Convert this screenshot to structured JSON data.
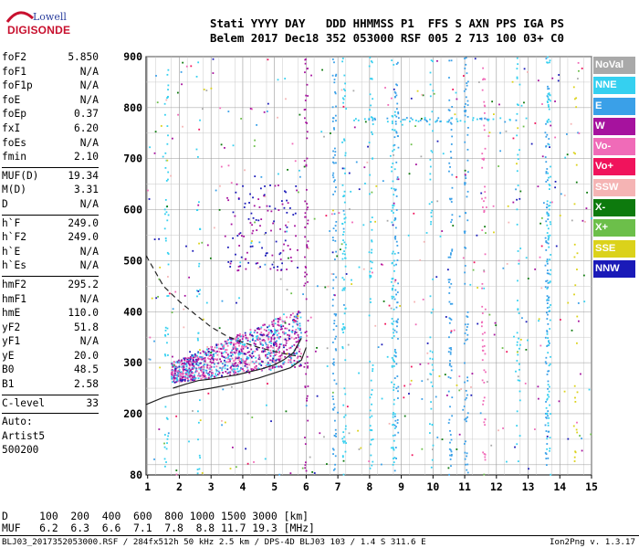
{
  "logo": {
    "line1": "Lowell",
    "line2": "DIGISONDE"
  },
  "header": {
    "line1": "Stati YYYY DAY   DDD HHMMSS P1  FFS S AXN PPS IGA PS",
    "line2": "Belem 2017 Dec18 352 053000 RSF 005 2 713 100 03+ C0"
  },
  "params": [
    {
      "name": "foF2",
      "value": "5.850"
    },
    {
      "name": "foF1",
      "value": "N/A"
    },
    {
      "name": "foF1p",
      "value": "N/A"
    },
    {
      "name": "foE",
      "value": "N/A"
    },
    {
      "name": "foEp",
      "value": "0.37"
    },
    {
      "name": "fxI",
      "value": "6.20"
    },
    {
      "name": "foEs",
      "value": "N/A"
    },
    {
      "name": "fmin",
      "value": "2.10"
    },
    {
      "sep": true
    },
    {
      "name": "MUF(D)",
      "value": "19.34"
    },
    {
      "name": "M(D)",
      "value": "3.31"
    },
    {
      "name": "D",
      "value": "N/A"
    },
    {
      "sep": true
    },
    {
      "name": "h`F",
      "value": "249.0"
    },
    {
      "name": "h`F2",
      "value": "249.0"
    },
    {
      "name": "h`E",
      "value": "N/A"
    },
    {
      "name": "h`Es",
      "value": "N/A"
    },
    {
      "sep": true
    },
    {
      "name": "hmF2",
      "value": "295.2"
    },
    {
      "name": "hmF1",
      "value": "N/A"
    },
    {
      "name": "hmE",
      "value": "110.0"
    },
    {
      "name": "yF2",
      "value": "51.8"
    },
    {
      "name": "yF1",
      "value": "N/A"
    },
    {
      "name": "yE",
      "value": "20.0"
    },
    {
      "name": "B0",
      "value": "48.5"
    },
    {
      "name": "B1",
      "value": "2.58"
    },
    {
      "sep": true
    },
    {
      "name": "C-level",
      "value": "33"
    },
    {
      "sep": true
    },
    {
      "text": "Auto:"
    },
    {
      "text": "Artist5"
    },
    {
      "text": "500200"
    }
  ],
  "legend": [
    {
      "label": "NoVal",
      "color": "#a9a9a9"
    },
    {
      "label": "NNE",
      "color": "#35d0f0"
    },
    {
      "label": "E",
      "color": "#3aa0e8"
    },
    {
      "label": "W",
      "color": "#a6129e"
    },
    {
      "label": "Vo-",
      "color": "#f06bb8"
    },
    {
      "label": "Vo+",
      "color": "#f0135c"
    },
    {
      "label": "SSW",
      "color": "#f5b4b4"
    },
    {
      "label": "X-",
      "color": "#0d7a0d"
    },
    {
      "label": "X+",
      "color": "#6cbf4a"
    },
    {
      "label": "SSE",
      "color": "#dbd21a"
    },
    {
      "label": "NNW",
      "color": "#1a1ab8"
    }
  ],
  "footer": {
    "line1": "D     100  200  400  600  800 1000 1500 3000 [km]",
    "line2": "MUF   6.2  6.3  6.6  7.1  7.8  8.8 11.7 19.3 [MHz]",
    "source": "BLJ03_2017352053000.RSF / 284fx512h 50 kHz 2.5 km / DPS-4D BLJ03 103 / 1.4 S 311.6 E",
    "version": "Ion2Png v. 1.3.17"
  },
  "chart_data": {
    "type": "scatter",
    "x_ticks": [
      1,
      2,
      3,
      4,
      5,
      6,
      7,
      8,
      9,
      10,
      11,
      12,
      13,
      14,
      15
    ],
    "y_ticks": [
      80,
      200,
      300,
      400,
      500,
      600,
      700,
      800,
      900
    ],
    "xlim": [
      0.95,
      15.0
    ],
    "ylim": [
      80,
      900
    ],
    "grid": true,
    "legend_position": "right",
    "series": [
      {
        "kind": "line",
        "style": "solid",
        "x": [
          0.95,
          1.5,
          2.0,
          2.5,
          3.0,
          3.5,
          4.0,
          4.5,
          5.0,
          5.5,
          5.85,
          6.0
        ],
        "y": [
          218,
          232,
          240,
          245,
          250,
          256,
          262,
          270,
          280,
          290,
          305,
          330
        ]
      },
      {
        "kind": "line",
        "style": "dashed",
        "x": [
          0.95,
          1.5,
          2.0,
          2.5,
          3.0,
          3.5,
          4.0,
          4.5,
          5.0,
          5.5,
          5.85
        ],
        "y": [
          510,
          450,
          420,
          395,
          370,
          352,
          340,
          330,
          322,
          315,
          312
        ]
      },
      {
        "kind": "line",
        "style": "solid",
        "x": [
          1.8,
          2.2,
          2.6,
          3.0,
          3.4,
          3.8,
          4.2,
          4.6,
          5.0,
          5.3,
          5.6,
          5.85
        ],
        "y": [
          250,
          258,
          265,
          268,
          272,
          276,
          282,
          288,
          296,
          306,
          320,
          348
        ]
      }
    ]
  }
}
